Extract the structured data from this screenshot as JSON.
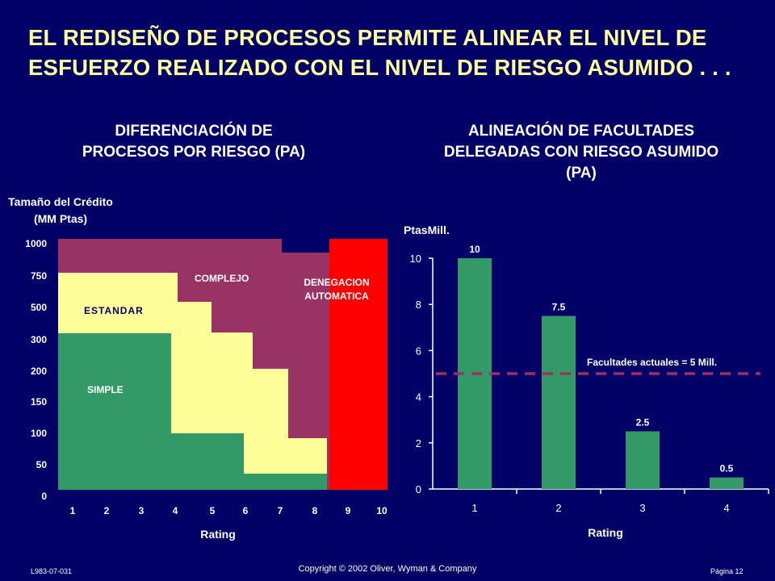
{
  "title_line1": "EL REDISEÑO DE PROCESOS PERMITE ALINEAR EL NIVEL DE",
  "title_line2": "ESFUERZO REALIZADO CON EL NIVEL DE RIESGO ASUMIDO . . .",
  "left": {
    "subtitle_line1": "DIFERENCIACIÓN DE",
    "subtitle_line2": "PROCESOS POR RIESGO (PA)",
    "ylabel_line1": "Tamaño del Crédito",
    "ylabel_line2": "(MM Ptas)",
    "xlabel": "Rating",
    "yticks": [
      "1000",
      "750",
      "500",
      "300",
      "200",
      "150",
      "100",
      "50",
      "0"
    ],
    "xticks": [
      "1",
      "2",
      "3",
      "4",
      "5",
      "6",
      "7",
      "8",
      "9",
      "10"
    ],
    "regions": {
      "simple": "SIMPLE",
      "estandar": "ESTANDAR",
      "complejo": "COMPLEJO",
      "denegacion_line1": "DENEGACION",
      "denegacion_line2": "AUTOMATICA"
    },
    "colors": {
      "simple": "#339966",
      "estandar": "#ffff99",
      "complejo": "#993366",
      "denegacion": "#ff0000"
    }
  },
  "right": {
    "subtitle_line1": "ALINEACIÓN DE FACULTADES",
    "subtitle_line2": "DELEGADAS CON RIESGO ASUMIDO",
    "subtitle_line3": "(PA)",
    "ylabel": "PtasMill.",
    "xlabel": "Rating",
    "reference_label": "Facultades actuales = 5 Mill."
  },
  "chart_data": [
    {
      "type": "bar",
      "categories": [
        "1",
        "2",
        "3",
        "4"
      ],
      "values": [
        10,
        7.5,
        2.5,
        0.5
      ],
      "data_labels": [
        "10",
        "7.5",
        "2.5",
        "0.5"
      ],
      "yticks": [
        "0",
        "2",
        "4",
        "6",
        "8",
        "10"
      ],
      "ylim": [
        0,
        10
      ],
      "reference_line": 5,
      "bar_color": "#339966",
      "line_color": "#993366"
    }
  ],
  "footer": {
    "code": "L983-07-031",
    "copyright": "Copyright © 2002 Oliver, Wyman & Company",
    "page": "Página 12"
  }
}
